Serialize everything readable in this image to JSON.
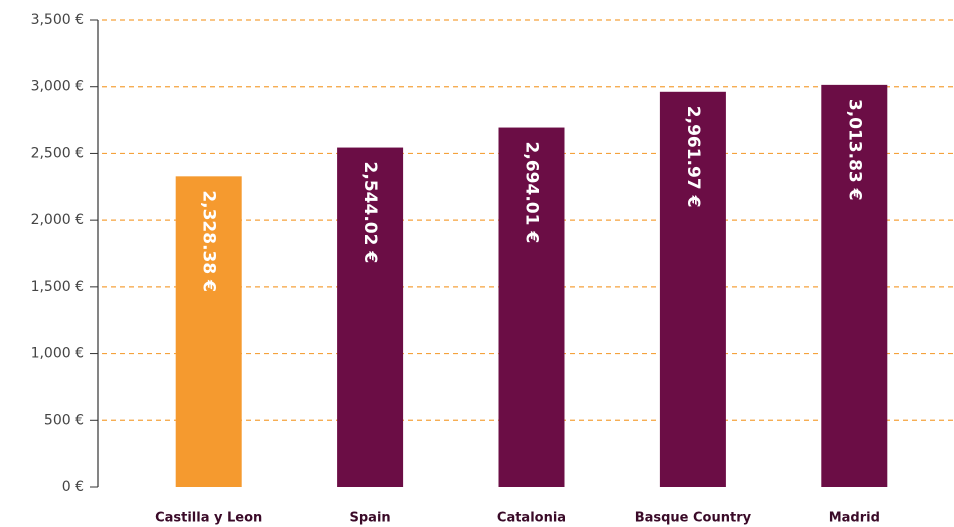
{
  "chart_data": {
    "type": "bar",
    "categories": [
      "Castilla y Leon",
      "Spain",
      "Catalonia",
      "Basque Country",
      "Madrid"
    ],
    "values": [
      2328.38,
      2544.02,
      2694.01,
      2961.97,
      3013.83
    ],
    "value_labels": [
      "2,328.38 €",
      "2,544.02 €",
      "2,694.01 €",
      "2,961.97 €",
      "3,013.83 €"
    ],
    "colors": [
      "#f59a2f",
      "#6b0d45",
      "#6b0d45",
      "#6b0d45",
      "#6b0d45"
    ],
    "ylim": [
      0,
      3500
    ],
    "yticks": [
      {
        "value": 0,
        "label": "0 €"
      },
      {
        "value": 500,
        "label": "500 €"
      },
      {
        "value": 1000,
        "label": "1,000 €"
      },
      {
        "value": 1500,
        "label": "1,500 €"
      },
      {
        "value": 2000,
        "label": "2,000 €"
      },
      {
        "value": 2500,
        "label": "2,500 €"
      },
      {
        "value": 3000,
        "label": "3,000 €"
      },
      {
        "value": 3500,
        "label": "3,500 €"
      }
    ],
    "grid": true
  }
}
